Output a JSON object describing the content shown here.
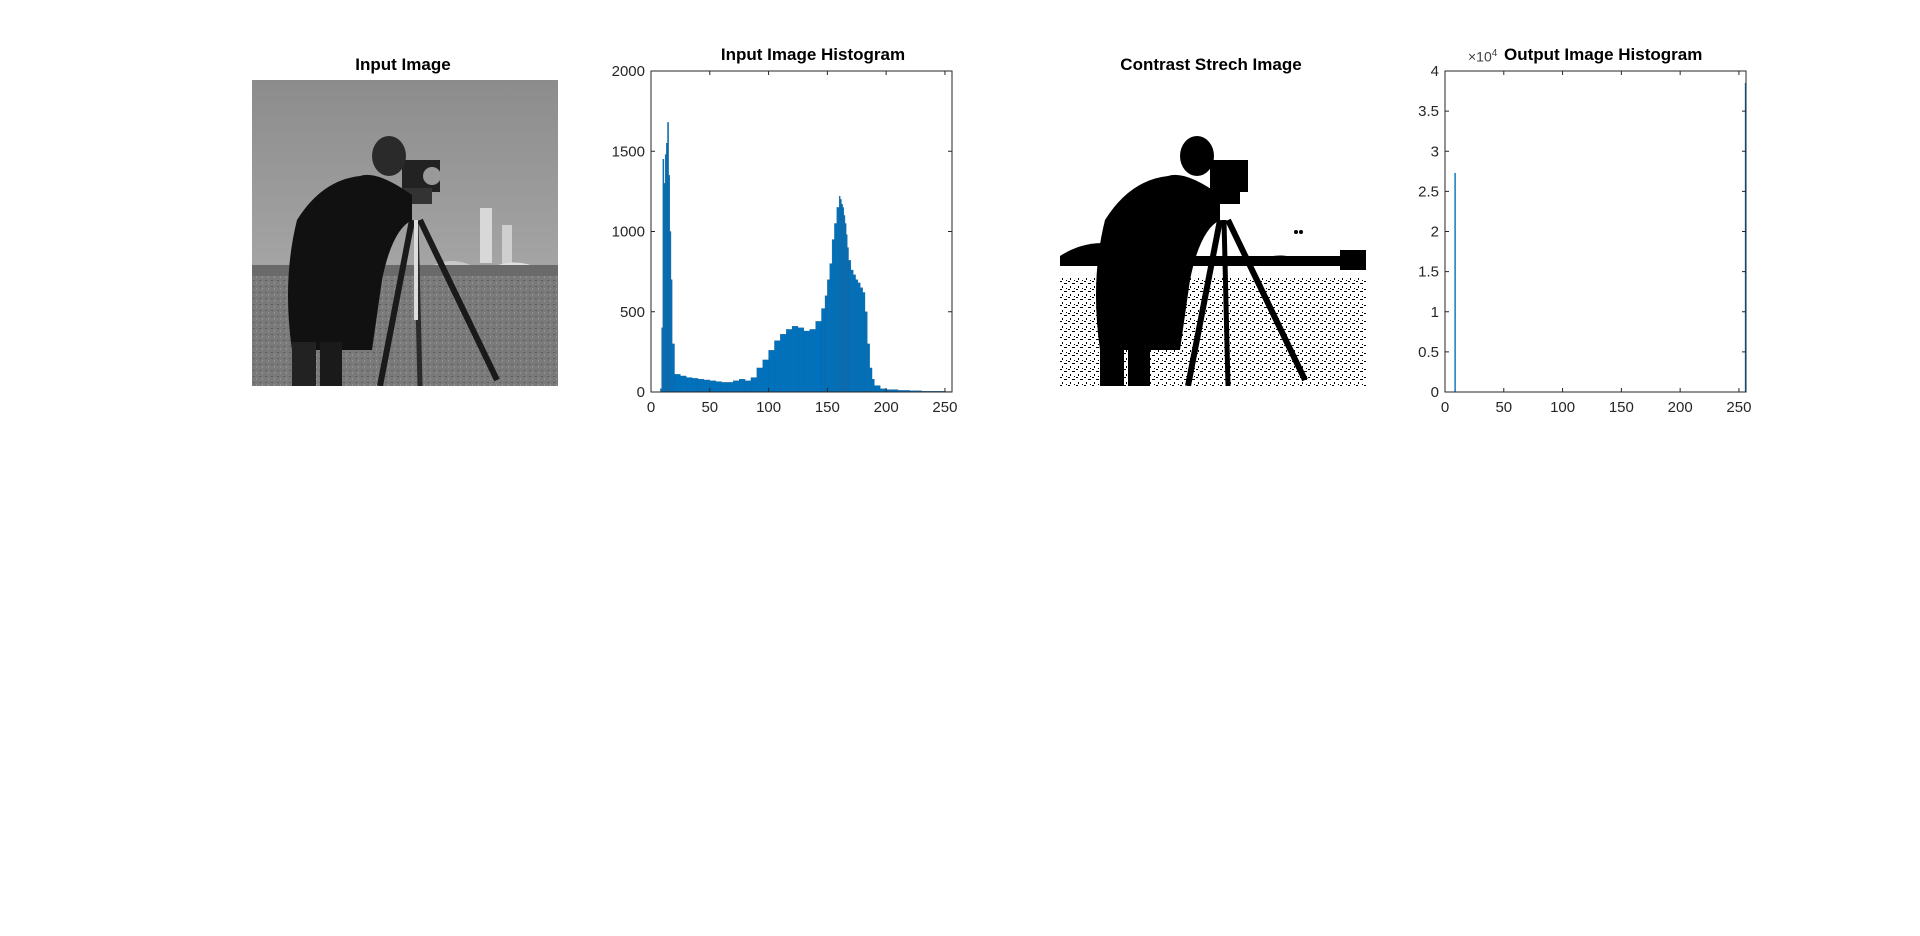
{
  "figure": {
    "background": "#ffffff",
    "bar_color": "#0072bd",
    "bar_edge": "#1a5a8c"
  },
  "panels": {
    "input_image": {
      "title": "Input Image"
    },
    "input_hist": {
      "title": "Input Image Histogram"
    },
    "contrast_image": {
      "title": "Contrast Strech Image"
    },
    "output_hist": {
      "title": "Output Image Histogram",
      "exponent_label": "×10",
      "exponent_power": "4"
    }
  },
  "chart_data": [
    {
      "type": "bar",
      "title": "Input Image Histogram",
      "xlabel": "",
      "ylabel": "",
      "xlim": [
        0,
        256
      ],
      "ylim": [
        0,
        2000
      ],
      "xticks": [
        0,
        50,
        100,
        150,
        200,
        250
      ],
      "yticks": [
        0,
        500,
        1000,
        1500,
        2000
      ],
      "grid": false,
      "x": [
        0,
        5,
        8,
        9,
        10,
        11,
        12,
        13,
        14,
        15,
        16,
        17,
        18,
        20,
        25,
        30,
        35,
        40,
        45,
        50,
        55,
        60,
        65,
        70,
        75,
        80,
        85,
        90,
        95,
        100,
        105,
        110,
        115,
        120,
        125,
        130,
        135,
        140,
        145,
        148,
        150,
        152,
        154,
        156,
        158,
        160,
        161,
        162,
        163,
        164,
        165,
        166,
        167,
        168,
        170,
        172,
        174,
        176,
        178,
        180,
        182,
        184,
        186,
        188,
        190,
        195,
        200,
        210,
        220,
        230,
        240,
        250,
        255
      ],
      "values": [
        0,
        0,
        20,
        400,
        1450,
        1300,
        1480,
        1550,
        1680,
        1350,
        1000,
        700,
        300,
        110,
        100,
        90,
        85,
        80,
        75,
        70,
        65,
        60,
        60,
        70,
        80,
        70,
        90,
        150,
        200,
        260,
        320,
        360,
        390,
        410,
        400,
        380,
        390,
        440,
        520,
        600,
        700,
        800,
        950,
        1050,
        1150,
        1220,
        1200,
        1170,
        1150,
        1100,
        1050,
        980,
        900,
        820,
        760,
        730,
        700,
        680,
        650,
        620,
        500,
        300,
        150,
        80,
        40,
        20,
        15,
        10,
        8,
        5,
        5,
        3,
        2
      ]
    },
    {
      "type": "bar",
      "title": "Output Image Histogram",
      "xlabel": "",
      "ylabel": "",
      "xlim": [
        0,
        256
      ],
      "ylim": [
        0,
        40000
      ],
      "y_multiplier": 10000,
      "xticks": [
        0,
        50,
        100,
        150,
        200,
        250
      ],
      "yticks": [
        0,
        0.5,
        1,
        1.5,
        2,
        2.5,
        3,
        3.5,
        4
      ],
      "grid": false,
      "x": [
        8,
        255
      ],
      "values": [
        27300,
        38500
      ]
    }
  ]
}
